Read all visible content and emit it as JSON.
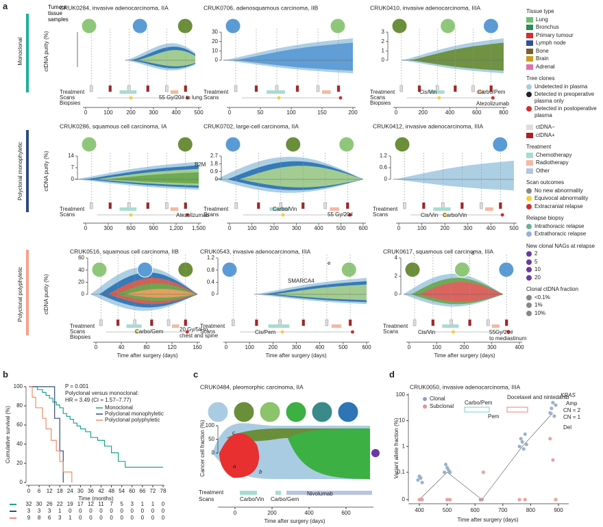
{
  "panel_labels": [
    "a",
    "b",
    "c",
    "d"
  ],
  "panel_a": {
    "row_labels": [
      "Monoclonal",
      "Polyclonal monophyletic",
      "Polyclonal polyphyletic"
    ],
    "y_label": "ctDNA purity (%)",
    "x_label": "Time after surgery (days)",
    "tissue_label": "Tumour tissue samples",
    "plots": [
      {
        "title": "CRUK0284, invasive adenocarcinoma, IIA",
        "yticks": [],
        "xticks": [
          0,
          100,
          200,
          300,
          400,
          500
        ],
        "tracks": [
          "Treatment",
          "Scans",
          "Biopsies"
        ],
        "notes": [
          "55 Gy/20# to lung"
        ]
      },
      {
        "title": "CRUK0706, adenosquamous carcinoma, IIB",
        "yticks": [
          0,
          10,
          20,
          30
        ],
        "xticks": [
          0,
          50,
          100,
          150,
          200
        ],
        "tracks": [
          "Treatment",
          "Scans"
        ],
        "notes": []
      },
      {
        "title": "CRUK0410, invasive adenocarcinoma, IIIA",
        "yticks": [
          0,
          1,
          2,
          3
        ],
        "xticks": [
          0,
          200,
          400,
          600,
          800
        ],
        "tracks": [
          "Treatment",
          "Scans",
          "Biopsies"
        ],
        "notes": [
          "Cis/Vin",
          "Carbo/Pem",
          "Atezolizumab"
        ]
      },
      {
        "title": "CRUK0286, squamous cell carcinoma, IA",
        "yticks": [
          0,
          7,
          14
        ],
        "xticks": [
          0,
          300,
          600,
          900,
          {
            "value": 1200,
            "label": "1,200"
          },
          {
            "value": 1500,
            "label": "1,500"
          }
        ],
        "tracks": [
          "Treatment",
          "Scans"
        ],
        "notes": [
          "B2M",
          "Atezolizumab"
        ]
      },
      {
        "title": "CRUK0702, large-cell carcinoma, IIA",
        "yticks": [
          0,
          0.9,
          1.8,
          2.7
        ],
        "xticks": [
          0,
          100,
          200,
          300,
          400,
          500,
          600
        ],
        "tracks": [
          "Treatment",
          "Scans"
        ],
        "notes": [
          "Carbo/Vin",
          "55 Gy/20#"
        ]
      },
      {
        "title": "CRUK0412, invasive adenocarcinoma, IIIA",
        "yticks": [
          0,
          0.6,
          1.2
        ],
        "xticks": [
          0,
          100,
          200,
          300,
          400,
          500
        ],
        "tracks": [
          "Treatment",
          "Scans"
        ],
        "notes": [
          "Cis/Vin",
          "Carbo/Vin"
        ]
      },
      {
        "title": "CRUK0516, squamous cell carcinoma, IIB",
        "yticks": [
          0,
          20,
          40,
          60
        ],
        "xticks": [
          0,
          40,
          80,
          120,
          160
        ],
        "tracks": [
          "Treatment",
          "Scans",
          "Biopsies"
        ],
        "notes": [
          "Carbo/Gem",
          "20 Gy/5# to",
          "chest and spine"
        ]
      },
      {
        "title": "CRUK0543, invasive adenocarcinoma, IIIA",
        "yticks": [
          0,
          0.4,
          0.8,
          1.2
        ],
        "xticks": [
          0,
          100,
          200,
          300,
          400,
          500,
          600
        ],
        "tracks": [
          "Treatment",
          "Scans"
        ],
        "notes": [
          "SMARCA4",
          "e",
          "Cis/Pem"
        ]
      },
      {
        "title": "CRUK0617, squamous cell carcinoma, IIIA",
        "yticks": [
          0,
          2,
          4
        ],
        "xticks": [
          0,
          100,
          200,
          300,
          400
        ],
        "tracks": [
          "Treatment",
          "Scans"
        ],
        "notes": [
          "d",
          "Cis/Vin",
          "55Gy/20#",
          "to mediastinum"
        ]
      }
    ]
  },
  "legend": [
    {
      "heading": "Tissue type",
      "items": [
        "Lung",
        "Bronchus",
        "Primary tumour",
        "Lymph node",
        "Bone",
        "Brain",
        "Adrenal"
      ],
      "colors": [
        "#6cc070",
        "#2e8b57",
        "#d03030",
        "#3050a0",
        "#7a6030",
        "#c8a020",
        "#e070b0"
      ]
    },
    {
      "heading": "Tree clones",
      "items": [
        "Undetected in plasma",
        "Detected in preoperative plasma only",
        "Detected in postoperative plasma"
      ],
      "colors": [
        "#a9cce3",
        "#222222",
        "#d03030"
      ]
    },
    {
      "heading": "",
      "items": [
        "ctDNA−",
        "ctDNA+"
      ],
      "colors": [
        "#dddddd",
        "#b02020"
      ]
    },
    {
      "heading": "Treatment",
      "items": [
        "Chemotherapy",
        "Radiotherapy",
        "Other"
      ],
      "colors": [
        "#a8dcd0",
        "#f4b8a0",
        "#b8c4e0"
      ]
    },
    {
      "heading": "Scan outcomes",
      "items": [
        "No new abnormality",
        "Equivocal abnormality",
        "Extracranial relapse"
      ],
      "colors": [
        "#888888",
        "#f0d040",
        "#d03030"
      ]
    },
    {
      "heading": "Relapse biopsy",
      "items": [
        "Intrathoracic relapse",
        "Extrathoracic relapse"
      ],
      "colors": [
        "#6ab0a0",
        "#9ab0d8"
      ]
    },
    {
      "heading": "New clonal NAGs at relapse",
      "items": [
        "2",
        "5",
        "10",
        "20"
      ],
      "colors": [
        "#6a3aa0",
        "#6a3aa0",
        "#6a3aa0",
        "#6a3aa0"
      ]
    },
    {
      "heading": "Clonal ctDNA fraction",
      "items": [
        "<0.1%",
        "1%",
        "10%"
      ],
      "colors": [
        "#888888",
        "#888888",
        "#888888"
      ]
    }
  ],
  "panel_c": {
    "title": "CRUK0484, pleomorphic carcinoma, IIA",
    "y_label": "Cancer cell fraction (%)",
    "x_label": "Time after surgery (days)",
    "yticks": [
      0,
      50,
      100
    ],
    "xticks": [
      0,
      200,
      400,
      600
    ],
    "tracks": [
      "Treatment",
      "Scans"
    ],
    "notes": [
      "c",
      "a",
      "b",
      "Carbo/Vin",
      "Carbo/Gem",
      "Nivolumab"
    ]
  },
  "chart_data": [
    {
      "type": "line",
      "x_label": "Time (months)",
      "y_label": "Cumulative survival (%)",
      "annotations": [
        "P = 0.001",
        "Polyclonal versus monoclonal:",
        "HR = 3.49 (CI = 1.57–7.77)"
      ],
      "xlim": [
        0,
        78
      ],
      "ylim": [
        0,
        100
      ],
      "xticks": [
        0,
        6,
        12,
        18,
        24,
        30,
        36,
        42,
        48,
        54,
        60,
        66,
        72,
        78
      ],
      "yticks": [
        0,
        20,
        40,
        60,
        80,
        100
      ],
      "series": [
        {
          "name": "Monoclonal",
          "color": "#1aa38a",
          "x": [
            0,
            5,
            8,
            10,
            12,
            14,
            16,
            18,
            20,
            22,
            24,
            26,
            28,
            30,
            33,
            36,
            40,
            44,
            48,
            52,
            56,
            78
          ],
          "values": [
            100,
            97,
            94,
            91,
            88,
            84,
            81,
            78,
            72,
            69,
            66,
            62,
            59,
            56,
            53,
            47,
            44,
            38,
            31,
            22,
            16,
            16
          ]
        },
        {
          "name": "Polyclonal monophyletic",
          "color": "#2c4a7a",
          "x": [
            0,
            15,
            18,
            20
          ],
          "values": [
            100,
            67,
            33,
            0
          ]
        },
        {
          "name": "Polyclonal polyphyletic",
          "color": "#f08a6a",
          "x": [
            0,
            2,
            4,
            8,
            10,
            13,
            16,
            18,
            20,
            25
          ],
          "values": [
            100,
            89,
            78,
            67,
            56,
            44,
            33,
            22,
            11,
            0
          ]
        }
      ],
      "risk_table": [
        [
          32,
          30,
          26,
          22,
          19,
          17,
          12,
          11,
          7,
          5,
          3,
          1,
          1,
          0
        ],
        [
          3,
          3,
          3,
          1,
          0,
          0,
          0,
          0,
          0,
          0,
          0,
          0,
          0,
          0
        ],
        [
          9,
          8,
          6,
          3,
          1,
          0,
          0,
          0,
          0,
          0,
          0,
          0,
          0,
          0
        ]
      ]
    },
    {
      "type": "scatter",
      "title": "CRUK0050, invasive adenocarcinoma, IIIA",
      "x_label": "Time after surgery (days)",
      "y_label": "Variant allele fraction (%)",
      "yscale": "log",
      "xlim": [
        400,
        900
      ],
      "xticks": [
        400,
        500,
        600,
        700,
        800,
        900
      ],
      "yticks": [
        0,
        0.1,
        1,
        10,
        100
      ],
      "annotations": [
        "Carbo/Pem",
        "Pem",
        "Docetaxel and nintedanib",
        "KRAS",
        "Amp",
        "CN = 2",
        "CN = 1",
        "Del"
      ],
      "series": [
        {
          "name": "Clonal",
          "color": "#8aa4c8",
          "x": [
            395,
            400,
            405,
            410,
            490,
            495,
            500,
            505,
            510,
            620,
            625,
            760,
            765,
            770,
            775,
            780,
            785,
            870,
            875,
            880,
            885,
            890
          ],
          "values": [
            0.05,
            0.07,
            0.06,
            0.04,
            0.1,
            0.2,
            0.15,
            0.12,
            0.1,
            0,
            0,
            1,
            2,
            1.5,
            0.8,
            3,
            1.2,
            20,
            30,
            50,
            15,
            40
          ]
        },
        {
          "name": "Subclonal",
          "color": "#e89090",
          "x": [
            400,
            410,
            500,
            510,
            620,
            630,
            760,
            780,
            870,
            880,
            890
          ],
          "values": [
            0,
            0,
            0,
            0,
            0,
            0.1,
            0,
            0,
            2,
            0.3,
            0
          ]
        }
      ]
    }
  ]
}
